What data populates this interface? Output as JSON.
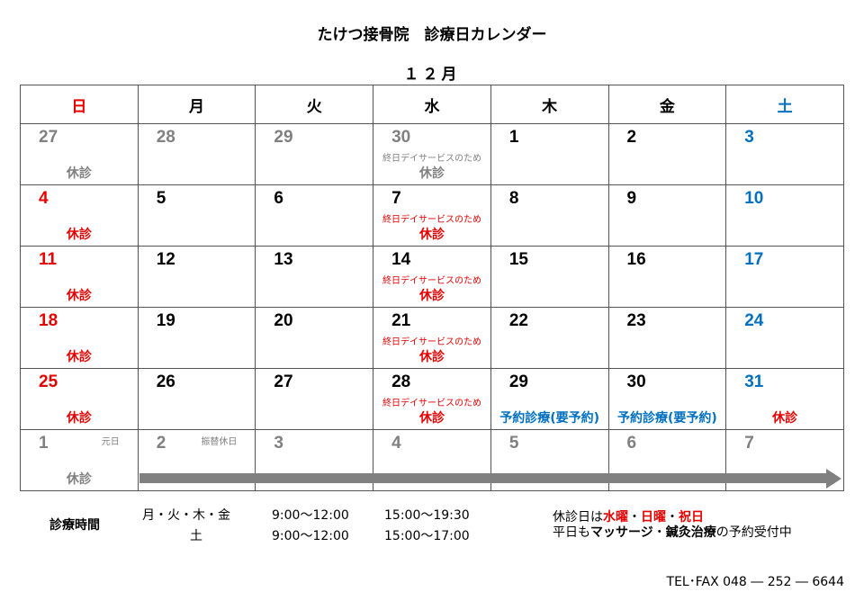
{
  "title": "たけつ接骨院　診療日カレンダー",
  "month": "１２月",
  "colors": {
    "red": "#e60000",
    "blue": "#0070c0",
    "grey": "#808080",
    "black": "#000000"
  },
  "weekdays": [
    {
      "label": "日",
      "color": "#e60000"
    },
    {
      "label": "月",
      "color": "#000000"
    },
    {
      "label": "火",
      "color": "#000000"
    },
    {
      "label": "水",
      "color": "#000000"
    },
    {
      "label": "木",
      "color": "#000000"
    },
    {
      "label": "金",
      "color": "#000000"
    },
    {
      "label": "土",
      "color": "#0070c0"
    }
  ],
  "weeks": [
    [
      {
        "day": "27",
        "color": "#808080",
        "label": "休診",
        "lc": "#808080"
      },
      {
        "day": "28",
        "color": "#808080"
      },
      {
        "day": "29",
        "color": "#808080"
      },
      {
        "day": "30",
        "color": "#808080",
        "note": "終日デイサービスのため",
        "nc": "#808080",
        "label": "休診",
        "lc": "#808080"
      },
      {
        "day": "1",
        "color": "#000000"
      },
      {
        "day": "2",
        "color": "#000000"
      },
      {
        "day": "3",
        "color": "#0070c0"
      }
    ],
    [
      {
        "day": "4",
        "color": "#e60000",
        "label": "休診",
        "lc": "#e60000"
      },
      {
        "day": "5",
        "color": "#000000"
      },
      {
        "day": "6",
        "color": "#000000"
      },
      {
        "day": "7",
        "color": "#000000",
        "note": "終日デイサービスのため",
        "nc": "#e60000",
        "label": "休診",
        "lc": "#e60000"
      },
      {
        "day": "8",
        "color": "#000000"
      },
      {
        "day": "9",
        "color": "#000000"
      },
      {
        "day": "10",
        "color": "#0070c0"
      }
    ],
    [
      {
        "day": "11",
        "color": "#e60000",
        "label": "休診",
        "lc": "#e60000"
      },
      {
        "day": "12",
        "color": "#000000"
      },
      {
        "day": "13",
        "color": "#000000"
      },
      {
        "day": "14",
        "color": "#000000",
        "note": "終日デイサービスのため",
        "nc": "#e60000",
        "label": "休診",
        "lc": "#e60000"
      },
      {
        "day": "15",
        "color": "#000000"
      },
      {
        "day": "16",
        "color": "#000000"
      },
      {
        "day": "17",
        "color": "#0070c0"
      }
    ],
    [
      {
        "day": "18",
        "color": "#e60000",
        "label": "休診",
        "lc": "#e60000"
      },
      {
        "day": "19",
        "color": "#000000"
      },
      {
        "day": "20",
        "color": "#000000"
      },
      {
        "day": "21",
        "color": "#000000",
        "note": "終日デイサービスのため",
        "nc": "#e60000",
        "label": "休診",
        "lc": "#e60000"
      },
      {
        "day": "22",
        "color": "#000000"
      },
      {
        "day": "23",
        "color": "#000000"
      },
      {
        "day": "24",
        "color": "#0070c0"
      }
    ],
    [
      {
        "day": "25",
        "color": "#e60000",
        "label": "休診",
        "lc": "#e60000"
      },
      {
        "day": "26",
        "color": "#000000"
      },
      {
        "day": "27",
        "color": "#000000"
      },
      {
        "day": "28",
        "color": "#000000",
        "note": "終日デイサービスのため",
        "nc": "#e60000",
        "label": "休診",
        "lc": "#e60000"
      },
      {
        "day": "29",
        "color": "#000000",
        "label": "予約診療(要予約)",
        "lc": "#0070c0"
      },
      {
        "day": "30",
        "color": "#000000",
        "label": "予約診療(要予約)",
        "lc": "#0070c0"
      },
      {
        "day": "31",
        "color": "#0070c0",
        "label": "休診",
        "lc": "#e60000"
      }
    ],
    [
      {
        "day": "1",
        "color": "#808080",
        "small": "元日",
        "label": "休診",
        "lc": "#808080"
      },
      {
        "day": "2",
        "color": "#808080",
        "small": "振替休日"
      },
      {
        "day": "3",
        "color": "#808080"
      },
      {
        "day": "4",
        "color": "#808080"
      },
      {
        "day": "5",
        "color": "#808080"
      },
      {
        "day": "6",
        "color": "#808080"
      },
      {
        "day": "7",
        "color": "#808080"
      }
    ]
  ],
  "hours": {
    "label": "診療時間",
    "rows": [
      {
        "days": "月・火・木・金",
        "am": "9:00～12:00",
        "pm": "15:00～19:30"
      },
      {
        "days": "土",
        "am": "9:00～12:00",
        "pm": "15:00～17:00"
      }
    ]
  },
  "notice": {
    "line1_prefix": "休診日は",
    "line1_a": "水曜",
    "sep": "・",
    "line1_b": "日曜",
    "line1_c": "祝日",
    "line2_prefix": "平日も",
    "line2_a": "マッサージ",
    "line2_b": "鍼灸治療",
    "line2_suffix": "の予約受付中"
  },
  "contact": "TEL･FAX  048 ― 252 ― 6644"
}
